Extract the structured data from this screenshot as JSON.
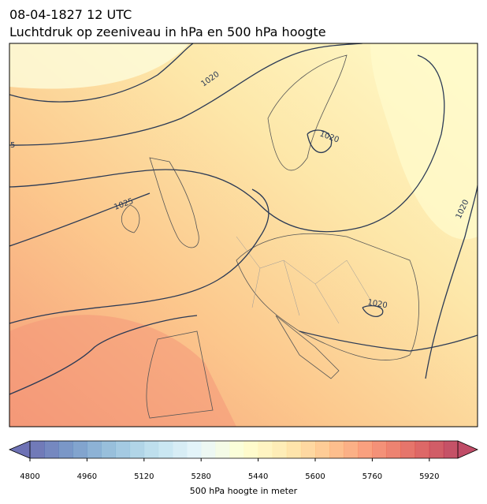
{
  "title": [
    "08-04-1827 12 UTC",
    "Luchtdruk op zeeniveau in hPa en 500 hPa hoogte"
  ],
  "map": {
    "contour_labels": [
      "1020",
      "1020",
      "1025",
      "1020",
      "1020",
      "5"
    ]
  },
  "colorbar": {
    "label": "500 hPa hoogte in meter",
    "lim": [
      4800,
      6000
    ],
    "levels": [
      4800,
      4840,
      4880,
      4920,
      4960,
      5000,
      5040,
      5080,
      5120,
      5160,
      5200,
      5240,
      5280,
      5320,
      5360,
      5400,
      5440,
      5480,
      5520,
      5560,
      5600,
      5640,
      5680,
      5720,
      5760,
      5800,
      5840,
      5880,
      5920,
      5960,
      6000
    ],
    "ticks": [
      4800,
      4960,
      5120,
      5280,
      5440,
      5600,
      5760,
      5920
    ],
    "colormap": [
      "#313695",
      "#4575b4",
      "#74add1",
      "#abd9e9",
      "#e0f3f8",
      "#ffffbf",
      "#fee090",
      "#fdae61",
      "#f46d43",
      "#d73027",
      "#a50026"
    ],
    "opacity": 0.7
  }
}
